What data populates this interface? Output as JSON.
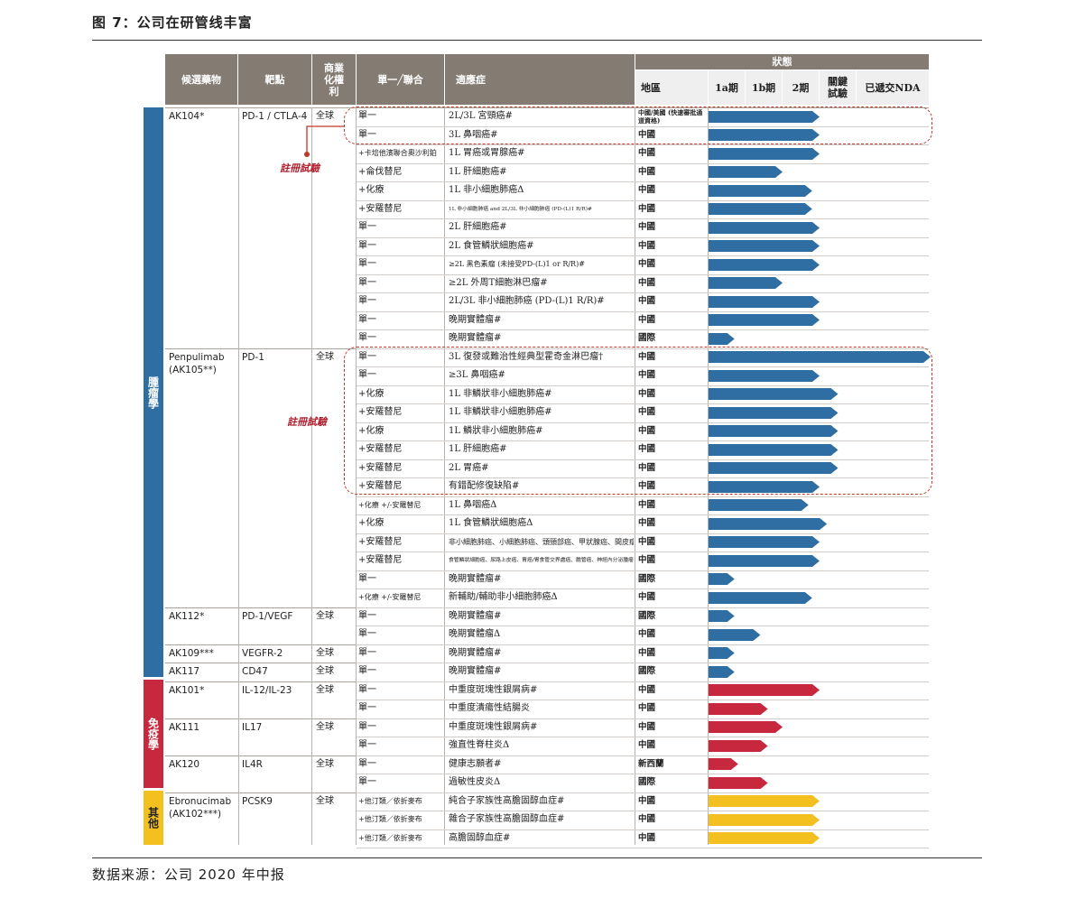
{
  "figure_title": "图 7：公司在研管线丰富",
  "source": "数据来源：公司 2020 年中报",
  "headers": {
    "candidate": "候選藥物",
    "target": "靶點",
    "rights": "商業化權利",
    "mono": "單一╱聯合",
    "indication": "適應症",
    "status": "狀態",
    "region": "地區",
    "phase1a": "1a期",
    "phase1b": "1b期",
    "phase2": "2期",
    "pivotal": "關鍵試驗",
    "nda": "已遞交NDA"
  },
  "categories": [
    {
      "label": "腫瘤學",
      "color": "#2e6ea3"
    },
    {
      "label": "免疫學",
      "color": "#c8283d"
    },
    {
      "label": "其他",
      "color": "#f3c020"
    }
  ],
  "registration_note": "註冊試驗",
  "colors": {
    "oncology": "#2e6ea3",
    "immunology": "#c8283d",
    "other": "#f3c020"
  },
  "candidates": [
    {
      "name": "AK104*",
      "target": "PD-1 / CTLA-4",
      "rights": "全球"
    },
    {
      "name": "Penpulimab (AK105**)",
      "target": "PD-1",
      "rights": "全球"
    },
    {
      "name": "AK112*",
      "target": "PD-1/VEGF",
      "rights": "全球"
    },
    {
      "name": "AK109***",
      "target": "VEGFR-2",
      "rights": "全球"
    },
    {
      "name": "AK117",
      "target": "CD47",
      "rights": "全球"
    },
    {
      "name": "AK101*",
      "target": "IL-12/IL-23",
      "rights": "全球"
    },
    {
      "name": "AK111",
      "target": "IL17",
      "rights": "全球"
    },
    {
      "name": "AK120",
      "target": "IL4R",
      "rights": "全球"
    },
    {
      "name": "Ebronucimab (AK102***)",
      "target": "PCSK9",
      "rights": "全球"
    }
  ],
  "rows": [
    {
      "combo": "單一",
      "indication": "2L/3L 宮頸癌#",
      "region": "中國/美國 (快速審批通道資格)",
      "stage": 3.0,
      "color": "oncology"
    },
    {
      "combo": "單一",
      "indication": "3L 鼻咽癌#",
      "region": "中國",
      "stage": 3.0,
      "color": "oncology"
    },
    {
      "combo": "+卡培他濱聯合奧沙利鉑",
      "indication": "1L 胃癌或胃腺癌#",
      "region": "中國",
      "stage": 3.0,
      "color": "oncology"
    },
    {
      "combo": "+侖伐替尼",
      "indication": "1L 肝細胞癌#",
      "region": "中國",
      "stage": 2.0,
      "color": "oncology"
    },
    {
      "combo": "+化療",
      "indication": "1L 非小細胞肺癌Δ",
      "region": "中國",
      "stage": 2.8,
      "color": "oncology"
    },
    {
      "combo": "+安羅替尼",
      "indication": "1L 非小細胞肺癌 and 2L/3L 非小細胞肺癌 (PD-(L)1 R/R)#",
      "region": "中國",
      "stage": 2.8,
      "color": "oncology"
    },
    {
      "combo": "單一",
      "indication": "2L 肝細胞癌#",
      "region": "中國",
      "stage": 3.0,
      "color": "oncology"
    },
    {
      "combo": "單一",
      "indication": "2L 食管鱗狀細胞癌#",
      "region": "中國",
      "stage": 3.0,
      "color": "oncology"
    },
    {
      "combo": "單一",
      "indication": "≥2L 黑色素瘤 (未接受PD-(L)1 or R/R)#",
      "region": "中國",
      "stage": 3.0,
      "color": "oncology"
    },
    {
      "combo": "單一",
      "indication": "≥2L 外周T細胞淋巴瘤#",
      "region": "中國",
      "stage": 2.0,
      "color": "oncology"
    },
    {
      "combo": "單一",
      "indication": "2L/3L 非小細胞肺癌 (PD-(L)1 R/R)#",
      "region": "中國",
      "stage": 3.0,
      "color": "oncology"
    },
    {
      "combo": "單一",
      "indication": "晚期實體瘤#",
      "region": "中國",
      "stage": 3.0,
      "color": "oncology"
    },
    {
      "combo": "單一",
      "indication": "晚期實體瘤#",
      "region": "國際",
      "stage": 0.7,
      "color": "oncology"
    },
    {
      "combo": "單一",
      "indication": "3L 復發或難治性經典型霍奇金淋巴瘤†",
      "region": "中國",
      "stage": 6.0,
      "color": "oncology"
    },
    {
      "combo": "單一",
      "indication": "≥3L 鼻咽癌#",
      "region": "中國",
      "stage": 3.0,
      "color": "oncology"
    },
    {
      "combo": "+化療",
      "indication": "1L 非鱗狀非小細胞肺癌#",
      "region": "中國",
      "stage": 3.5,
      "color": "oncology"
    },
    {
      "combo": "+安羅替尼",
      "indication": "1L 非鱗狀非小細胞肺癌#",
      "region": "中國",
      "stage": 3.5,
      "color": "oncology"
    },
    {
      "combo": "+化療",
      "indication": "1L 鱗狀非小細胞肺癌#",
      "region": "中國",
      "stage": 3.5,
      "color": "oncology"
    },
    {
      "combo": "+安羅替尼",
      "indication": "1L 肝細胞癌#",
      "region": "中國",
      "stage": 3.5,
      "color": "oncology"
    },
    {
      "combo": "+安羅替尼",
      "indication": "2L 胃癌#",
      "region": "中國",
      "stage": 3.5,
      "color": "oncology"
    },
    {
      "combo": "+安羅替尼",
      "indication": "有錯配修復缺陷#",
      "region": "中國",
      "stage": 3.0,
      "color": "oncology"
    },
    {
      "combo": "+化療 +/-安羅替尼",
      "indication": "1L 鼻咽癌Δ",
      "region": "中國",
      "stage": 2.7,
      "color": "oncology"
    },
    {
      "combo": "+化療",
      "indication": "1L 食管鱗狀細胞癌Δ",
      "region": "中國",
      "stage": 3.2,
      "color": "oncology"
    },
    {
      "combo": "+安羅替尼",
      "indication": "非小細胞肺癌、小細胞肺癌、頭頸部癌、甲狀腺癌、間皮瘤和胸腺癌#",
      "region": "中國",
      "stage": 3.0,
      "color": "oncology"
    },
    {
      "combo": "+安羅替尼",
      "indication": "食管鱗狀細胞癌、尿路上皮癌、胃癌/胃食管交界處癌、膽管癌、神經內分泌腫瘤 (NET)#",
      "region": "中國",
      "stage": 3.0,
      "color": "oncology"
    },
    {
      "combo": "單一",
      "indication": "晚期實體瘤#",
      "region": "國際",
      "stage": 0.7,
      "color": "oncology"
    },
    {
      "combo": "+化療 +/-安羅替尼",
      "indication": "新輔助/輔助非小細胞肺癌Δ",
      "region": "中國",
      "stage": 2.8,
      "color": "oncology"
    },
    {
      "combo": "單一",
      "indication": "晚期實體瘤#",
      "region": "國際",
      "stage": 0.7,
      "color": "oncology"
    },
    {
      "combo": "單一",
      "indication": "晚期實體瘤Δ",
      "region": "中國",
      "stage": 1.4,
      "color": "oncology"
    },
    {
      "combo": "單一",
      "indication": "晚期實體瘤#",
      "region": "中國",
      "stage": 0.7,
      "color": "oncology"
    },
    {
      "combo": "單一",
      "indication": "晚期實體瘤#",
      "region": "國際",
      "stage": 0.7,
      "color": "oncology"
    },
    {
      "combo": "單一",
      "indication": "中重度斑塊性銀屑病#",
      "region": "中國",
      "stage": 3.0,
      "color": "immunology"
    },
    {
      "combo": "單一",
      "indication": "中重度潰瘍性結腸炎",
      "region": "中國",
      "stage": 1.6,
      "color": "immunology"
    },
    {
      "combo": "單一",
      "indication": "中重度斑塊性銀屑病#",
      "region": "中國",
      "stage": 2.0,
      "color": "immunology"
    },
    {
      "combo": "單一",
      "indication": "強直性脊柱炎Δ",
      "region": "中國",
      "stage": 1.6,
      "color": "immunology"
    },
    {
      "combo": "單一",
      "indication": "健康志願者#",
      "region": "新西蘭",
      "stage": 0.8,
      "color": "immunology"
    },
    {
      "combo": "單一",
      "indication": "過敏性皮炎Δ",
      "region": "國際",
      "stage": 1.6,
      "color": "immunology"
    },
    {
      "combo": "+他汀類／依折麥布",
      "indication": "純合子家族性高膽固醇血症#",
      "region": "中國",
      "stage": 3.0,
      "color": "other"
    },
    {
      "combo": "+他汀類／依折麥布",
      "indication": "雜合子家族性高膽固醇血症#",
      "region": "中國",
      "stage": 3.0,
      "color": "other"
    },
    {
      "combo": "+他汀類／依折麥布",
      "indication": "高膽固醇血症#",
      "region": "中國",
      "stage": 3.0,
      "color": "other"
    }
  ]
}
